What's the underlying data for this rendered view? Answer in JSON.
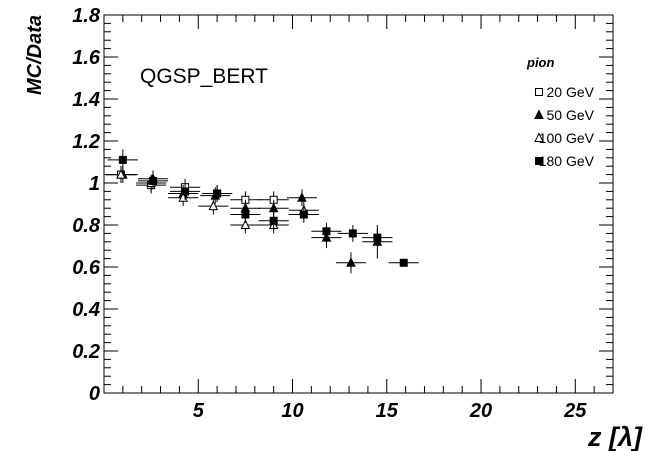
{
  "chart_data": {
    "type": "scatter",
    "xlabel": "z [λ]",
    "ylabel": "MC/Data",
    "xlim": [
      0,
      27
    ],
    "ylim": [
      0,
      1.8
    ],
    "x_ticks": [
      "5",
      "10",
      "15",
      "20",
      "25"
    ],
    "y_ticks": [
      "0",
      "0.2",
      "0.4",
      "0.6",
      "0.8",
      "1",
      "1.2",
      "1.4",
      "1.6",
      "1.8"
    ],
    "annotation": "QGSP_BERT",
    "legend_title": "pion",
    "legend_position": "top-right",
    "series": [
      {
        "name": "20 GeV",
        "marker": "open-square",
        "points": [
          {
            "x": 0.9,
            "y": 1.04,
            "xerr": 0.8,
            "yerr": 0.04
          },
          {
            "x": 2.5,
            "y": 0.99,
            "xerr": 0.8,
            "yerr": 0.04
          },
          {
            "x": 4.3,
            "y": 0.98,
            "xerr": 0.8,
            "yerr": 0.04
          },
          {
            "x": 6.0,
            "y": 0.95,
            "xerr": 0.8,
            "yerr": 0.04
          },
          {
            "x": 7.5,
            "y": 0.92,
            "xerr": 0.8,
            "yerr": 0.04
          },
          {
            "x": 9.0,
            "y": 0.92,
            "xerr": 0.8,
            "yerr": 0.04
          }
        ]
      },
      {
        "name": "50 GeV",
        "marker": "filled-triangle",
        "points": [
          {
            "x": 1.0,
            "y": 1.04,
            "xerr": 0.8,
            "yerr": 0.04
          },
          {
            "x": 2.6,
            "y": 1.02,
            "xerr": 0.8,
            "yerr": 0.04
          },
          {
            "x": 4.2,
            "y": 0.95,
            "xerr": 0.8,
            "yerr": 0.04
          },
          {
            "x": 5.9,
            "y": 0.94,
            "xerr": 0.8,
            "yerr": 0.04
          },
          {
            "x": 7.5,
            "y": 0.88,
            "xerr": 0.8,
            "yerr": 0.04
          },
          {
            "x": 9.0,
            "y": 0.88,
            "xerr": 0.8,
            "yerr": 0.04
          },
          {
            "x": 10.5,
            "y": 0.93,
            "xerr": 0.8,
            "yerr": 0.04
          },
          {
            "x": 11.8,
            "y": 0.74,
            "xerr": 0.8,
            "yerr": 0.05
          },
          {
            "x": 13.1,
            "y": 0.62,
            "xerr": 0.8,
            "yerr": 0.05
          },
          {
            "x": 14.5,
            "y": 0.72,
            "xerr": 0.8,
            "yerr": 0.08
          }
        ]
      },
      {
        "name": "100 GeV",
        "marker": "open-triangle",
        "points": [
          {
            "x": 0.9,
            "y": 1.04,
            "xerr": 0.8,
            "yerr": 0.04
          },
          {
            "x": 2.5,
            "y": 1.0,
            "xerr": 0.8,
            "yerr": 0.04
          },
          {
            "x": 4.2,
            "y": 0.93,
            "xerr": 0.8,
            "yerr": 0.04
          },
          {
            "x": 5.8,
            "y": 0.89,
            "xerr": 0.8,
            "yerr": 0.04
          },
          {
            "x": 7.5,
            "y": 0.8,
            "xerr": 0.8,
            "yerr": 0.04
          },
          {
            "x": 9.0,
            "y": 0.8,
            "xerr": 0.8,
            "yerr": 0.04
          },
          {
            "x": 10.6,
            "y": 0.87,
            "xerr": 0.8,
            "yerr": 0.04
          }
        ]
      },
      {
        "name": "180 GeV",
        "marker": "filled-square",
        "points": [
          {
            "x": 1.0,
            "y": 1.11,
            "xerr": 0.8,
            "yerr": 0.05
          },
          {
            "x": 2.6,
            "y": 1.01,
            "xerr": 0.8,
            "yerr": 0.04
          },
          {
            "x": 4.3,
            "y": 0.96,
            "xerr": 0.8,
            "yerr": 0.04
          },
          {
            "x": 6.0,
            "y": 0.95,
            "xerr": 0.8,
            "yerr": 0.04
          },
          {
            "x": 7.5,
            "y": 0.85,
            "xerr": 0.8,
            "yerr": 0.04
          },
          {
            "x": 9.0,
            "y": 0.82,
            "xerr": 0.8,
            "yerr": 0.04
          },
          {
            "x": 10.6,
            "y": 0.85,
            "xerr": 0.8,
            "yerr": 0.04
          },
          {
            "x": 11.8,
            "y": 0.77,
            "xerr": 0.8,
            "yerr": 0.04
          },
          {
            "x": 13.2,
            "y": 0.76,
            "xerr": 0.8,
            "yerr": 0.04
          },
          {
            "x": 14.5,
            "y": 0.74,
            "xerr": 0.8,
            "yerr": 0.04
          },
          {
            "x": 15.9,
            "y": 0.62,
            "xerr": 0.8,
            "yerr": 0.0
          }
        ]
      }
    ]
  }
}
